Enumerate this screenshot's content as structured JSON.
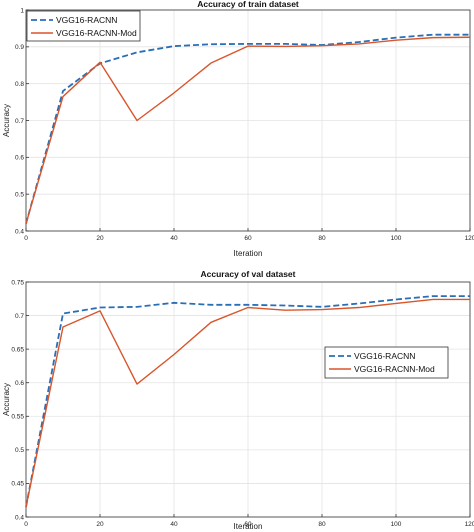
{
  "chart_data": [
    {
      "type": "line",
      "title": "Accuracy of train dataset",
      "xlabel": "Iteration",
      "ylabel": "Accuracy",
      "xlim": [
        0,
        120
      ],
      "ylim": [
        0.4,
        1.0
      ],
      "xticks": [
        "0",
        "20",
        "40",
        "60",
        "80",
        "100",
        "120"
      ],
      "yticks": [
        "0.4",
        "0.5",
        "0.6",
        "0.7",
        "0.8",
        "0.9",
        "1"
      ],
      "grid": true,
      "legend_position": "top-left",
      "series": [
        {
          "name": "VGG16-RACNN",
          "style": "dashed",
          "color": "#2a6fb5",
          "x": [
            0,
            10,
            20,
            30,
            40,
            50,
            60,
            70,
            80,
            90,
            100,
            110,
            120
          ],
          "y": [
            0.42,
            0.78,
            0.855,
            0.885,
            0.902,
            0.907,
            0.908,
            0.908,
            0.905,
            0.913,
            0.925,
            0.933,
            0.933
          ]
        },
        {
          "name": "VGG16-RACNN-Mod",
          "style": "solid",
          "color": "#d9552b",
          "x": [
            0,
            10,
            20,
            30,
            40,
            50,
            60,
            70,
            80,
            90,
            100,
            110,
            120
          ],
          "y": [
            0.42,
            0.765,
            0.858,
            0.7,
            0.775,
            0.856,
            0.902,
            0.901,
            0.903,
            0.908,
            0.918,
            0.925,
            0.926
          ]
        }
      ]
    },
    {
      "type": "line",
      "title": "Accuracy of val dataset",
      "xlabel": "Iteration",
      "ylabel": "Accuracy",
      "xlim": [
        0,
        120
      ],
      "ylim": [
        0.4,
        0.75
      ],
      "xticks": [
        "0",
        "20",
        "40",
        "60",
        "80",
        "100",
        "120"
      ],
      "yticks": [
        "0.4",
        "0.45",
        "0.5",
        "0.55",
        "0.6",
        "0.65",
        "0.7",
        "0.75"
      ],
      "grid": true,
      "legend_position": "right",
      "series": [
        {
          "name": "VGG16-RACNN",
          "style": "dashed",
          "color": "#2a6fb5",
          "x": [
            0,
            10,
            20,
            30,
            40,
            50,
            60,
            70,
            80,
            90,
            100,
            110,
            120
          ],
          "y": [
            0.415,
            0.703,
            0.712,
            0.713,
            0.719,
            0.716,
            0.716,
            0.715,
            0.713,
            0.718,
            0.724,
            0.729,
            0.729
          ]
        },
        {
          "name": "VGG16-RACNN-Mod",
          "style": "solid",
          "color": "#d9552b",
          "x": [
            0,
            10,
            20,
            30,
            40,
            50,
            60,
            70,
            80,
            90,
            100,
            110,
            120
          ],
          "y": [
            0.415,
            0.683,
            0.707,
            0.598,
            0.642,
            0.69,
            0.712,
            0.708,
            0.709,
            0.712,
            0.718,
            0.724,
            0.724
          ]
        }
      ]
    }
  ]
}
